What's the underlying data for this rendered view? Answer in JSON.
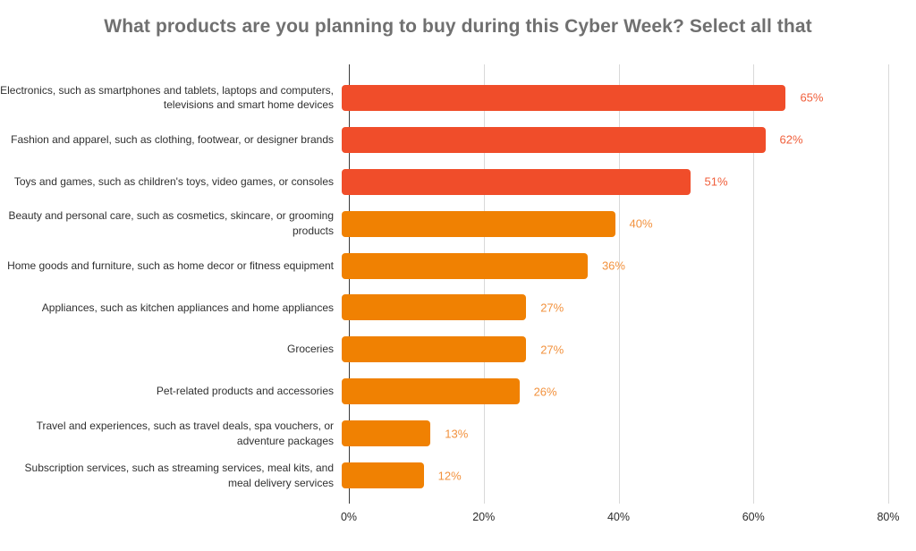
{
  "title": "What products are you planning to buy during this Cyber Week? Select all that",
  "colors": {
    "background": "#FFFFFF",
    "title_text": "#707070",
    "category_text": "#303030",
    "tick_text": "#2B2B2B",
    "gridline": "#D9D9D9",
    "axis_line": "#3A3A3A",
    "bar_high": "#F04D2A",
    "bar_low": "#F08102",
    "value_label_high": "#F05F3B",
    "value_label_low": "#F2923E"
  },
  "chart_data": {
    "type": "bar",
    "orientation": "horizontal",
    "title": "What products are you planning to buy during this Cyber Week? Select all that",
    "categories": [
      "Electronics, such as smartphones and tablets, laptops and computers, televisions and smart home devices",
      "Fashion and apparel, such as clothing, footwear, or designer brands",
      "Toys and games, such as children's toys, video games, or consoles",
      "Beauty and personal care, such as cosmetics, skincare, or grooming products",
      "Home goods and furniture, such as home decor or fitness equipment",
      "Appliances, such as kitchen appliances and home appliances",
      "Groceries",
      "Pet-related products and accessories",
      "Travel and experiences, such as travel deals, spa vouchers, or adventure packages",
      "Subscription services, such as streaming services, meal kits, and meal delivery services"
    ],
    "values": [
      65,
      62,
      51,
      40,
      36,
      27,
      27,
      26,
      13,
      12
    ],
    "value_labels": [
      "65%",
      "62%",
      "51%",
      "40%",
      "36%",
      "27%",
      "27%",
      "26%",
      "13%",
      "12%"
    ],
    "bar_colors": [
      "#F04D2A",
      "#F04D2A",
      "#F04D2A",
      "#F08102",
      "#F08102",
      "#F08102",
      "#F08102",
      "#F08102",
      "#F08102",
      "#F08102"
    ],
    "value_label_colors": [
      "#F05F3B",
      "#F05F3B",
      "#F05F3B",
      "#F2923E",
      "#F2923E",
      "#F2923E",
      "#F2923E",
      "#F2923E",
      "#F2923E",
      "#F2923E"
    ],
    "xlabel": "",
    "ylabel": "",
    "xlim": [
      0,
      80
    ],
    "x_tick_values": [
      0,
      20,
      40,
      60,
      80
    ],
    "x_tick_labels": [
      "0%",
      "20%",
      "40%",
      "60%",
      "80%"
    ],
    "grid": "vertical-gridlines-on",
    "legend": "none"
  }
}
